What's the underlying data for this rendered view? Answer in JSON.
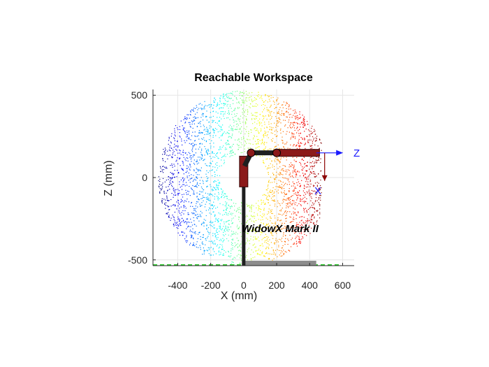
{
  "chart_data": {
    "type": "scatter",
    "title": "Reachable Workspace",
    "xlabel": "X (mm)",
    "ylabel": "Z (mm)",
    "xlim": [
      -550,
      670
    ],
    "ylim": [
      -535,
      535
    ],
    "xticks": [
      -400,
      -200,
      0,
      200,
      400,
      600
    ],
    "yticks": [
      -500,
      0,
      500
    ],
    "xtick_labels": [
      "-400",
      "-200",
      "0",
      "200",
      "400",
      "600"
    ],
    "ytick_labels": [
      "-500",
      "0",
      "500"
    ],
    "grid": true,
    "point_cloud": {
      "description_in_data_units": "workspace sample points, coloured by X with jet colormap",
      "center": [
        0,
        0
      ],
      "radius": 530,
      "x_range": [
        -520,
        470
      ],
      "colormap": "jet",
      "approx_count": 3200
    },
    "robot": {
      "label": "WidowX Mark II",
      "base_x": 0,
      "base_z": -535,
      "shoulder": [
        0,
        70
      ],
      "elbow": [
        45,
        150
      ],
      "wrist": [
        200,
        150
      ],
      "gripper_end": [
        460,
        150
      ],
      "platform_x_range": [
        0,
        440
      ],
      "platform_z": -535
    },
    "end_effector_frame": {
      "origin": [
        440,
        150
      ],
      "z_label": "Z",
      "x_label": "X",
      "z_axis_end": [
        620,
        150
      ],
      "x_axis_end": [
        440,
        -20
      ]
    },
    "colors": {
      "robot_link": "#1f1f1f",
      "joint": "#8b1a1a",
      "platform": "#8c8c8c",
      "ground": "#33cc33",
      "frame_axis": "#1a1aff",
      "frame_x_arrow": "#8b0000"
    }
  }
}
